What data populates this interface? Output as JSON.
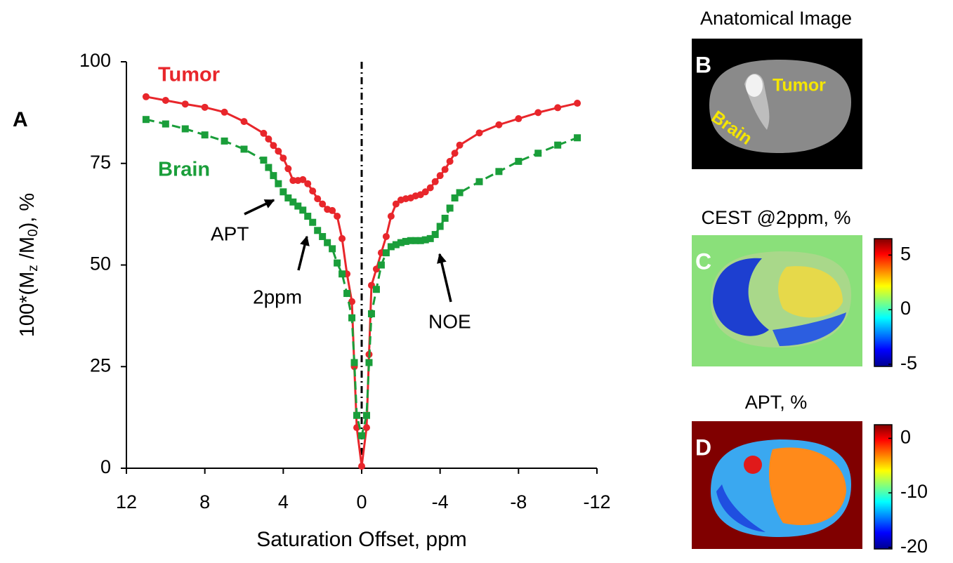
{
  "chart_data": {
    "type": "line",
    "xlabel": "Saturation Offset, ppm",
    "ylabel_parts": [
      "100*(M",
      "z",
      " /M",
      "0",
      "), %"
    ],
    "annotations": [
      "A",
      "APT",
      "2ppm",
      "NOE"
    ],
    "x": [
      11,
      10,
      9,
      8,
      7,
      6,
      5,
      4.75,
      4.5,
      4.25,
      4,
      3.75,
      3.5,
      3.25,
      3,
      2.75,
      2.5,
      2.25,
      2,
      1.75,
      1.5,
      1.25,
      1,
      0.75,
      0.5,
      0.375,
      0.25,
      0,
      -0.25,
      -0.375,
      -0.5,
      -0.75,
      -1,
      -1.25,
      -1.5,
      -1.75,
      -2,
      -2.25,
      -2.5,
      -2.75,
      -3,
      -3.25,
      -3.5,
      -3.75,
      -4,
      -4.25,
      -4.5,
      -4.75,
      -5,
      -6,
      -7,
      -8,
      -9,
      -10,
      -11
    ],
    "series": [
      {
        "name": "Tumor",
        "color": "#e8262b",
        "marker": "circle",
        "dashed": false,
        "values": [
          91.4,
          90.5,
          89.6,
          88.8,
          87.6,
          85.3,
          82.4,
          81,
          79.4,
          78,
          76.3,
          73.7,
          70.8,
          70.8,
          71,
          70,
          68.2,
          66.3,
          65,
          63.7,
          63.4,
          62,
          56.5,
          47.8,
          41,
          25,
          10,
          0.5,
          10,
          28,
          45,
          49,
          53,
          57,
          62,
          65,
          66,
          66.3,
          66.5,
          67,
          67.3,
          68,
          69,
          70.5,
          72,
          73.5,
          75.5,
          77.5,
          79.5,
          82.5,
          84.5,
          86,
          87.5,
          88.7,
          89.8
        ]
      },
      {
        "name": "Brain",
        "color": "#1a9e3a",
        "marker": "square",
        "dashed": true,
        "values": [
          85.8,
          84.7,
          83.5,
          82,
          80.5,
          78.5,
          75.8,
          74,
          72,
          70,
          68,
          66.5,
          65.5,
          64.5,
          63.5,
          62,
          60.5,
          58.5,
          57,
          55.5,
          54,
          50.5,
          47.8,
          43,
          37,
          26,
          13,
          8,
          13,
          26,
          38,
          44,
          50,
          53,
          54.5,
          55,
          55.5,
          55.8,
          56,
          56,
          56,
          56.2,
          56.5,
          57.5,
          59.5,
          61.5,
          64,
          66.5,
          67.8,
          70.5,
          73,
          75.5,
          77.5,
          79.5,
          81.3
        ]
      }
    ],
    "xlim": [
      12,
      -12
    ],
    "xticks": [
      12,
      8,
      4,
      0,
      -4,
      -8,
      -12
    ],
    "ylim": [
      0,
      100
    ],
    "yticks": [
      0,
      25,
      50,
      75,
      100
    ],
    "grid": false
  },
  "panels": [
    {
      "label": "B",
      "title": "Anatomical Image",
      "annotations": [
        "Tumor",
        "Brain"
      ]
    },
    {
      "label": "C",
      "title": "CEST @2ppm, %",
      "colorbar": {
        "lim": [
          -5.2,
          6.5
        ],
        "ticks": [
          5,
          0,
          -5
        ]
      }
    },
    {
      "label": "D",
      "title": "APT, %",
      "colorbar": {
        "lim": [
          -20.3,
          2.5
        ],
        "ticks": [
          0,
          -10,
          -20
        ]
      }
    }
  ]
}
